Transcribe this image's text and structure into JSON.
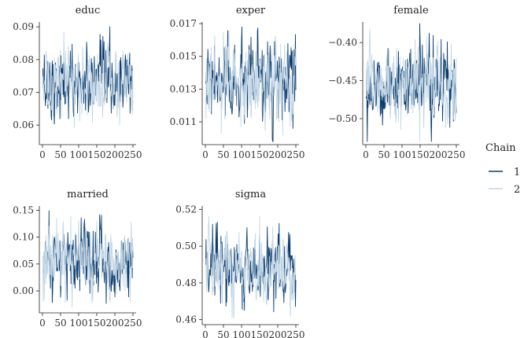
{
  "chart_data": {
    "type": "line",
    "legend": {
      "title": "Chain",
      "entries": [
        {
          "label": "1",
          "color": "#0b3c6e"
        },
        {
          "label": "2",
          "color": "#c3d7e6"
        }
      ],
      "position": "right"
    },
    "x_ticks": [
      "0",
      "50",
      "100",
      "150",
      "200",
      "250"
    ],
    "x_range": [
      0,
      250
    ],
    "iterations": 250,
    "grid": false,
    "panels": [
      {
        "title": "educ",
        "ylim": [
          0.055,
          0.091
        ],
        "y_ticks": [
          0.06,
          0.07,
          0.08,
          0.09
        ],
        "y_tick_labels": [
          "0.06",
          "0.07",
          "0.08",
          "0.09"
        ],
        "mean": 0.0725,
        "sd": 0.005,
        "min": 0.056,
        "max": 0.0905
      },
      {
        "title": "exper",
        "ylim": [
          0.0098,
          0.017
        ],
        "y_ticks": [
          0.011,
          0.013,
          0.015,
          0.017
        ],
        "y_tick_labels": [
          "0.011",
          "0.013",
          "0.015",
          "0.017"
        ],
        "mean": 0.0133,
        "sd": 0.0011,
        "min": 0.0098,
        "max": 0.0168
      },
      {
        "title": "female",
        "ylim": [
          -0.53,
          -0.375
        ],
        "y_ticks": [
          -0.5,
          -0.45,
          -0.4
        ],
        "y_tick_labels": [
          "−0.50",
          "−0.45",
          "−0.40"
        ],
        "mean": -0.455,
        "sd": 0.025,
        "min": -0.53,
        "max": -0.375
      },
      {
        "title": "married",
        "ylim": [
          -0.035,
          0.155
        ],
        "y_ticks": [
          0.0,
          0.05,
          0.1,
          0.15
        ],
        "y_tick_labels": [
          "0.00",
          "0.05",
          "0.10",
          "0.15"
        ],
        "mean": 0.057,
        "sd": 0.03,
        "min": -0.035,
        "max": 0.15
      },
      {
        "title": "sigma",
        "ylim": [
          0.459,
          0.521
        ],
        "y_ticks": [
          0.46,
          0.48,
          0.5,
          0.52
        ],
        "y_tick_labels": [
          "0.46",
          "0.48",
          "0.50",
          "0.52"
        ],
        "mean": 0.487,
        "sd": 0.009,
        "min": 0.461,
        "max": 0.519
      }
    ]
  }
}
